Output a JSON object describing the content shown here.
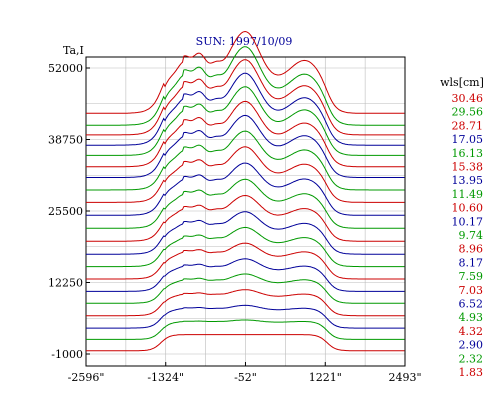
{
  "chart_data": {
    "type": "line",
    "title": "SUN: 1997/10/09",
    "ylabel": "Ta,I",
    "xlabel": "",
    "x_ticks": [
      "-2596\"",
      "-1324\"",
      "-52\"",
      "1221\"",
      "2493\""
    ],
    "x_tick_values": [
      -2596,
      -1324,
      -52,
      1221,
      2493
    ],
    "y_ticks": [
      "52000",
      "38750",
      "25500",
      "12250",
      "-1000"
    ],
    "y_tick_values": [
      52000,
      38750,
      25500,
      12250,
      -1000
    ],
    "xlim": [
      -2596,
      2493
    ],
    "ylim": [
      -1000,
      52000
    ],
    "grid": true,
    "legend_title": "wls[cm]",
    "legend_placement": "right",
    "series_colors": [
      "#cc0000",
      "#009900",
      "#000099"
    ],
    "series": [
      {
        "name": "30.46",
        "color": "#cc0000",
        "offset": 43600
      },
      {
        "name": "29.56",
        "color": "#009900",
        "offset": 41400
      },
      {
        "name": "28.71",
        "color": "#cc0000",
        "offset": 39600
      },
      {
        "name": "17.05",
        "color": "#000099",
        "offset": 37700
      },
      {
        "name": "16.13",
        "color": "#009900",
        "offset": 35800
      },
      {
        "name": "15.38",
        "color": "#cc0000",
        "offset": 33700
      },
      {
        "name": "13.95",
        "color": "#000099",
        "offset": 31700
      },
      {
        "name": "11.49",
        "color": "#009900",
        "offset": 29400
      },
      {
        "name": "10.60",
        "color": "#cc0000",
        "offset": 27100
      },
      {
        "name": "10.17",
        "color": "#000099",
        "offset": 24700
      },
      {
        "name": "9.74",
        "color": "#009900",
        "offset": 22300
      },
      {
        "name": "8.96",
        "color": "#cc0000",
        "offset": 19900
      },
      {
        "name": "8.17",
        "color": "#000099",
        "offset": 17500
      },
      {
        "name": "7.59",
        "color": "#009900",
        "offset": 15200
      },
      {
        "name": "7.03",
        "color": "#cc0000",
        "offset": 12900
      },
      {
        "name": "6.52",
        "color": "#000099",
        "offset": 10600
      },
      {
        "name": "4.93",
        "color": "#009900",
        "offset": 8400
      },
      {
        "name": "4.32",
        "color": "#cc0000",
        "offset": 6100
      },
      {
        "name": "2.90",
        "color": "#000099",
        "offset": 3800
      },
      {
        "name": "2.32",
        "color": "#009900",
        "offset": 1700
      },
      {
        "name": "1.83",
        "color": "#cc0000",
        "offset": -400
      }
    ]
  }
}
